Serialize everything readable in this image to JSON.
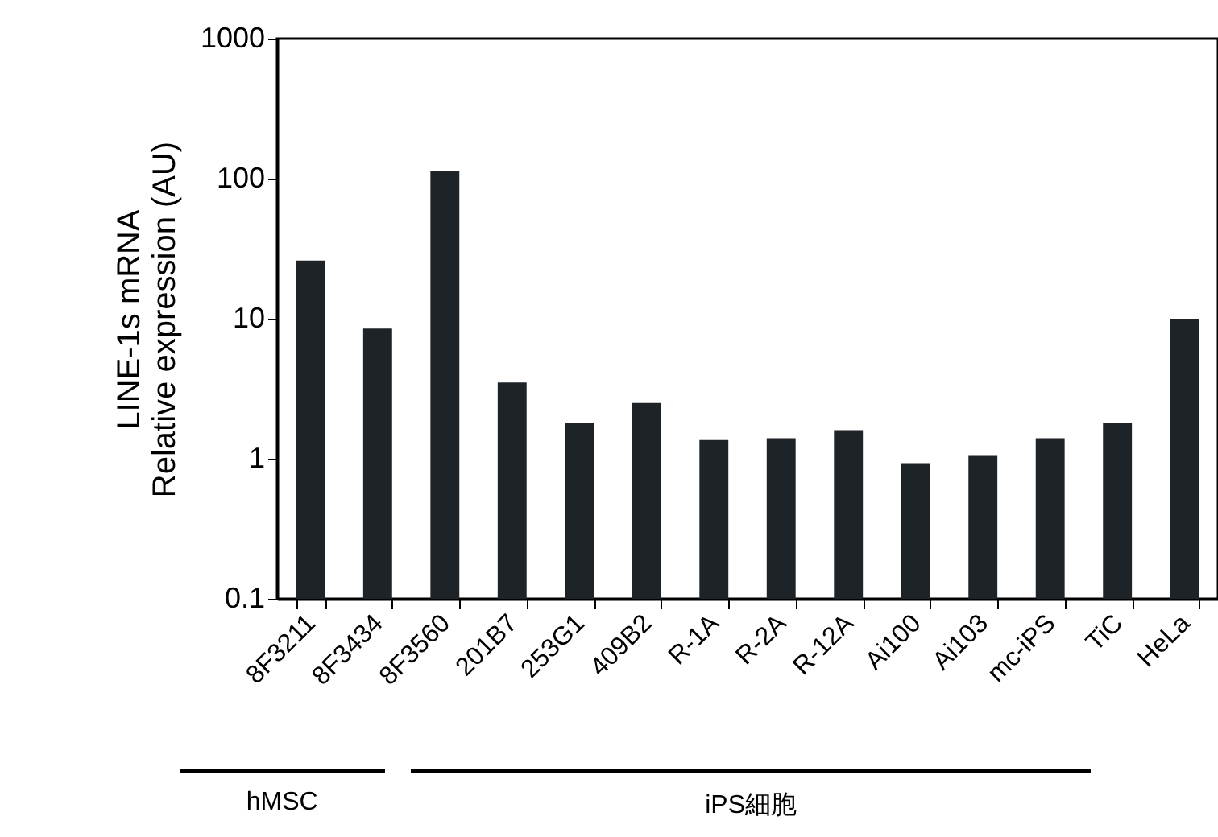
{
  "chart_data": {
    "type": "bar",
    "ylabel": "LINE-1s mRNA\nRelative expression (AU)",
    "categories": [
      "8F3211",
      "8F3434",
      "8F3560",
      "201B7",
      "253G1",
      "409B2",
      "R-1A",
      "R-2A",
      "R-12A",
      "Ai100",
      "Ai103",
      "mc-iPS",
      "TiC",
      "HeLa"
    ],
    "values": [
      26,
      8.5,
      114,
      3.5,
      1.8,
      2.5,
      1.36,
      1.4,
      1.6,
      0.93,
      1.06,
      1.4,
      1.8,
      10
    ],
    "color": "#1e2328",
    "log": true,
    "ylim": [
      0.1,
      1000
    ],
    "yticks": [
      0.1,
      1,
      10,
      100,
      1000
    ],
    "annotations": [
      "hMSC",
      "iPS細胞"
    ]
  }
}
